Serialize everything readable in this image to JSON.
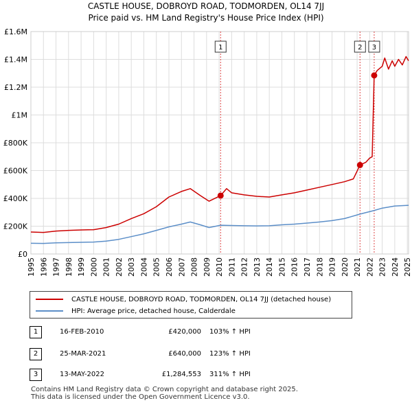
{
  "title_line1": "CASTLE HOUSE, DOBROYD ROAD, TODMORDEN, OL14 7JJ",
  "title_line2": "Price paid vs. HM Land Registry's House Price Index (HPI)",
  "chart_data": {
    "type": "line",
    "xlim": [
      1995.0,
      2025.1
    ],
    "ylim": [
      0,
      1600000
    ],
    "y_ticks": [
      {
        "value": 0,
        "label": "£0"
      },
      {
        "value": 200000,
        "label": "£200K"
      },
      {
        "value": 400000,
        "label": "£400K"
      },
      {
        "value": 600000,
        "label": "£600K"
      },
      {
        "value": 800000,
        "label": "£800K"
      },
      {
        "value": 1000000,
        "label": "£1M"
      },
      {
        "value": 1200000,
        "label": "£1.2M"
      },
      {
        "value": 1400000,
        "label": "£1.4M"
      },
      {
        "value": 1600000,
        "label": "£1.6M"
      }
    ],
    "x_ticks": [
      "1995",
      "1996",
      "1997",
      "1998",
      "1999",
      "2000",
      "2001",
      "2002",
      "2003",
      "2004",
      "2005",
      "2006",
      "2007",
      "2008",
      "2009",
      "2010",
      "2011",
      "2012",
      "2013",
      "2014",
      "2015",
      "2016",
      "2017",
      "2018",
      "2019",
      "2020",
      "2021",
      "2022",
      "2023",
      "2024",
      "2025"
    ],
    "grid": true,
    "series": [
      {
        "name": "CASTLE HOUSE, DOBROYD ROAD, TODMORDEN, OL14 7JJ (detached house)",
        "color": "#cc0000",
        "x": [
          1995.0,
          1996.0,
          1997.0,
          1998.0,
          1999.0,
          2000.0,
          2001.0,
          2002.0,
          2003.0,
          2004.0,
          2005.0,
          2006.0,
          2007.0,
          2007.7,
          2008.5,
          2009.2,
          2010.12,
          2010.6,
          2011.0,
          2012.0,
          2013.0,
          2014.0,
          2015.0,
          2016.0,
          2017.0,
          2018.0,
          2019.0,
          2020.0,
          2020.7,
          2021.23,
          2021.7,
          2022.0,
          2022.2,
          2022.36,
          2022.6,
          2023.0,
          2023.2,
          2023.5,
          2023.8,
          2024.0,
          2024.3,
          2024.6,
          2024.9,
          2025.1
        ],
        "y": [
          158000,
          155000,
          165000,
          170000,
          173000,
          175000,
          190000,
          215000,
          255000,
          290000,
          340000,
          410000,
          450000,
          470000,
          420000,
          380000,
          420000,
          470000,
          440000,
          425000,
          415000,
          410000,
          425000,
          440000,
          460000,
          480000,
          500000,
          520000,
          540000,
          640000,
          660000,
          690000,
          700000,
          1284553,
          1320000,
          1350000,
          1410000,
          1330000,
          1390000,
          1350000,
          1400000,
          1360000,
          1420000,
          1390000
        ]
      },
      {
        "name": "HPI: Average price, detached house, Calderdale",
        "color": "#5b8ec8",
        "x": [
          1995.0,
          1996.0,
          1997.0,
          1998.0,
          1999.0,
          2000.0,
          2001.0,
          2002.0,
          2003.0,
          2004.0,
          2005.0,
          2006.0,
          2007.0,
          2007.7,
          2008.5,
          2009.2,
          2010.12,
          2011.0,
          2012.0,
          2013.0,
          2014.0,
          2015.0,
          2016.0,
          2017.0,
          2018.0,
          2019.0,
          2020.0,
          2021.23,
          2022.36,
          2023.0,
          2024.0,
          2025.1
        ],
        "y": [
          77000,
          76000,
          80000,
          82000,
          84000,
          86000,
          93000,
          105000,
          125000,
          145000,
          170000,
          195000,
          215000,
          230000,
          210000,
          190000,
          207000,
          205000,
          203000,
          202000,
          203000,
          210000,
          215000,
          222000,
          230000,
          240000,
          255000,
          287000,
          313000,
          330000,
          345000,
          350000
        ]
      }
    ],
    "sale_markers": [
      {
        "label": "1",
        "x": 2010.12,
        "y": 420000
      },
      {
        "label": "2",
        "x": 2021.23,
        "y": 640000
      },
      {
        "label": "3",
        "x": 2022.36,
        "y": 1284553
      }
    ]
  },
  "legend": {
    "property": "CASTLE HOUSE, DOBROYD ROAD, TODMORDEN, OL14 7JJ (detached house)",
    "hpi": "HPI: Average price, detached house, Calderdale"
  },
  "transactions": [
    {
      "num": "1",
      "date": "16-FEB-2010",
      "price": "£420,000",
      "hpi": "103% ↑ HPI"
    },
    {
      "num": "2",
      "date": "25-MAR-2021",
      "price": "£640,000",
      "hpi": "123% ↑ HPI"
    },
    {
      "num": "3",
      "date": "13-MAY-2022",
      "price": "£1,284,553",
      "hpi": "311% ↑ HPI"
    }
  ],
  "footer_line1": "Contains HM Land Registry data © Crown copyright and database right 2025.",
  "footer_line2": "This data is licensed under the Open Government Licence v3.0."
}
